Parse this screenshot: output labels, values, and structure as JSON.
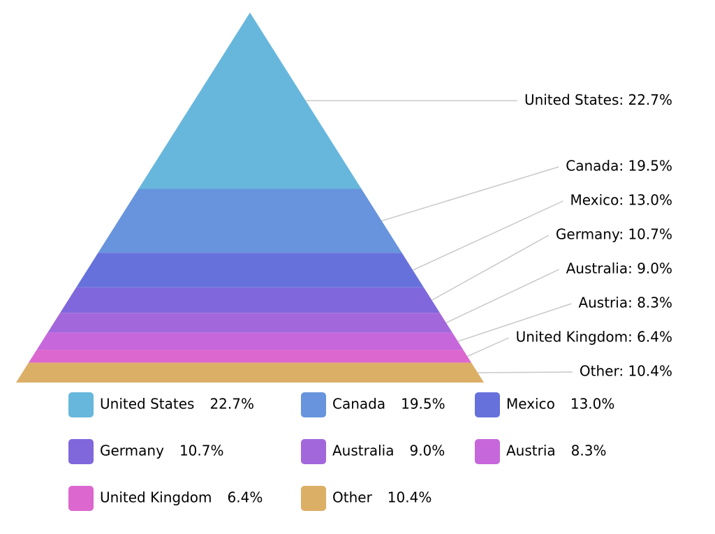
{
  "chart_data": {
    "type": "pyramid",
    "categories": [
      "United States",
      "Canada",
      "Mexico",
      "Germany",
      "Australia",
      "Austria",
      "United Kingdom",
      "Other"
    ],
    "values": [
      22.7,
      19.5,
      13.0,
      10.7,
      9.0,
      8.3,
      6.4,
      10.4
    ],
    "value_labels": [
      "22.7%",
      "19.5%",
      "13.0%",
      "10.7%",
      "9.0%",
      "8.3%",
      "6.4%",
      "10.4%"
    ],
    "data_labels": [
      "United States: 22.7%",
      "Canada: 19.5%",
      "Mexico: 13.0%",
      "Germany: 10.7%",
      "Australia: 9.0%",
      "Austria: 8.3%",
      "United Kingdom: 6.4%",
      "Other: 10.4%"
    ],
    "colors": [
      "#67b7dc",
      "#6794dc",
      "#6771dc",
      "#8067dc",
      "#a367dc",
      "#c767dc",
      "#dc67ce",
      "#dcaf67"
    ]
  }
}
